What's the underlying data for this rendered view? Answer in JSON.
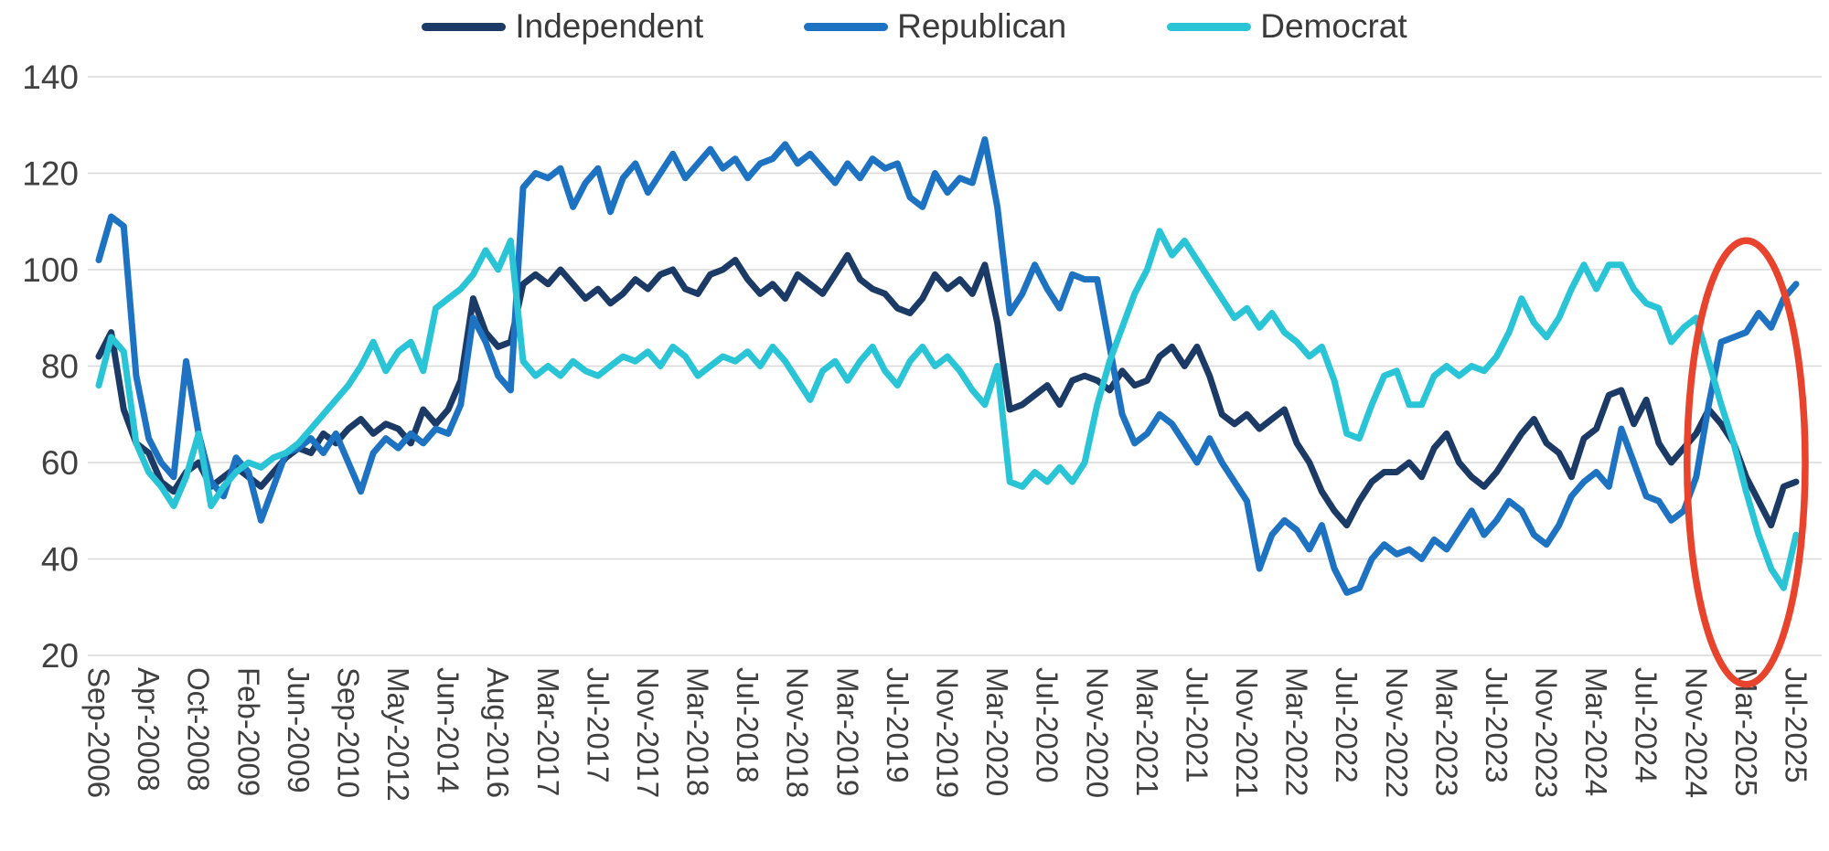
{
  "legend": {
    "items": [
      {
        "label": "Independent",
        "color": "#1b3a66"
      },
      {
        "label": "Republican",
        "color": "#1d72c2"
      },
      {
        "label": "Democrat",
        "color": "#29c5d6"
      }
    ]
  },
  "chart_data": {
    "type": "line",
    "title": "",
    "xlabel": "",
    "ylabel": "",
    "ylim": [
      20,
      140
    ],
    "yticks": [
      20,
      40,
      60,
      80,
      100,
      120,
      140
    ],
    "grid": true,
    "legend_position": "top",
    "gridline_color": "#d9d9d9",
    "x_tick_labels": [
      "Sep-2006",
      "Apr-2008",
      "Oct-2008",
      "Feb-2009",
      "Jun-2009",
      "Sep-2010",
      "May-2012",
      "Jun-2014",
      "Aug-2016",
      "Mar-2017",
      "Jul-2017",
      "Nov-2017",
      "Mar-2018",
      "Jul-2018",
      "Nov-2018",
      "Mar-2019",
      "Jul-2019",
      "Nov-2019",
      "Mar-2020",
      "Jul-2020",
      "Nov-2020",
      "Mar-2021",
      "Jul-2021",
      "Nov-2021",
      "Mar-2022",
      "Jul-2022",
      "Nov-2022",
      "Mar-2023",
      "Jul-2023",
      "Nov-2023",
      "Mar-2024",
      "Jul-2024",
      "Nov-2024",
      "Mar-2025",
      "Jul-2025"
    ],
    "points_per_tick": 4,
    "series": [
      {
        "name": "Independent",
        "color": "#1b3a66",
        "values": [
          82,
          87,
          71,
          64,
          62,
          56,
          54,
          58,
          60,
          55,
          57,
          59,
          57,
          55,
          58,
          61,
          63,
          62,
          66,
          64,
          67,
          69,
          66,
          68,
          67,
          64,
          71,
          68,
          71,
          77,
          94,
          87,
          84,
          85,
          97,
          99,
          97,
          100,
          97,
          94,
          96,
          93,
          95,
          98,
          96,
          99,
          100,
          96,
          95,
          99,
          100,
          102,
          98,
          95,
          97,
          94,
          99,
          97,
          95,
          99,
          103,
          98,
          96,
          95,
          92,
          91,
          94,
          99,
          96,
          98,
          95,
          101,
          89,
          71,
          72,
          74,
          76,
          72,
          77,
          78,
          77,
          75,
          79,
          76,
          77,
          82,
          84,
          80,
          84,
          78,
          70,
          68,
          70,
          67,
          69,
          71,
          64,
          60,
          54,
          50,
          47,
          52,
          56,
          58,
          58,
          60,
          57,
          63,
          66,
          60,
          57,
          55,
          58,
          62,
          66,
          69,
          64,
          62,
          57,
          65,
          67,
          74,
          75,
          68,
          73,
          64,
          60,
          63,
          66,
          71,
          68,
          64,
          57,
          52,
          47,
          55,
          56
        ]
      },
      {
        "name": "Republican",
        "color": "#1d72c2",
        "values": [
          102,
          111,
          109,
          78,
          65,
          60,
          57,
          81,
          66,
          56,
          53,
          61,
          58,
          48,
          55,
          62,
          63,
          65,
          62,
          66,
          60,
          54,
          62,
          65,
          63,
          66,
          64,
          67,
          66,
          72,
          90,
          85,
          78,
          75,
          117,
          120,
          119,
          121,
          113,
          118,
          121,
          112,
          119,
          122,
          116,
          120,
          124,
          119,
          122,
          125,
          121,
          123,
          119,
          122,
          123,
          126,
          122,
          124,
          121,
          118,
          122,
          119,
          123,
          121,
          122,
          115,
          113,
          120,
          116,
          119,
          118,
          127,
          113,
          91,
          95,
          101,
          96,
          92,
          99,
          98,
          98,
          84,
          70,
          64,
          66,
          70,
          68,
          64,
          60,
          65,
          60,
          56,
          52,
          38,
          45,
          48,
          46,
          42,
          47,
          38,
          33,
          34,
          40,
          43,
          41,
          42,
          40,
          44,
          42,
          46,
          50,
          45,
          48,
          52,
          50,
          45,
          43,
          47,
          53,
          56,
          58,
          55,
          67,
          60,
          53,
          52,
          48,
          50,
          57,
          72,
          85,
          86,
          87,
          91,
          88,
          94,
          97
        ]
      },
      {
        "name": "Democrat",
        "color": "#29c5d6",
        "values": [
          76,
          86,
          83,
          64,
          58,
          55,
          51,
          57,
          66,
          51,
          55,
          58,
          60,
          59,
          61,
          62,
          64,
          67,
          70,
          73,
          76,
          80,
          85,
          79,
          83,
          85,
          79,
          92,
          94,
          96,
          99,
          104,
          100,
          106,
          81,
          78,
          80,
          78,
          81,
          79,
          78,
          80,
          82,
          81,
          83,
          80,
          84,
          82,
          78,
          80,
          82,
          81,
          83,
          80,
          84,
          81,
          77,
          73,
          79,
          81,
          77,
          81,
          84,
          79,
          76,
          81,
          84,
          80,
          82,
          79,
          75,
          72,
          80,
          56,
          55,
          58,
          56,
          59,
          56,
          60,
          72,
          81,
          88,
          95,
          100,
          108,
          103,
          106,
          102,
          98,
          94,
          90,
          92,
          88,
          91,
          87,
          85,
          82,
          84,
          77,
          66,
          65,
          72,
          78,
          79,
          72,
          72,
          78,
          80,
          78,
          80,
          79,
          82,
          87,
          94,
          89,
          86,
          90,
          96,
          101,
          96,
          101,
          101,
          96,
          93,
          92,
          85,
          88,
          90,
          81,
          72,
          64,
          54,
          45,
          38,
          34,
          45
        ]
      }
    ],
    "annotation": {
      "shape": "ellipse",
      "color": "#e8432c",
      "x_start_label": "Nov-2024",
      "x_end_label": "Jul-2025",
      "y_min": 14,
      "y_max": 106
    }
  }
}
